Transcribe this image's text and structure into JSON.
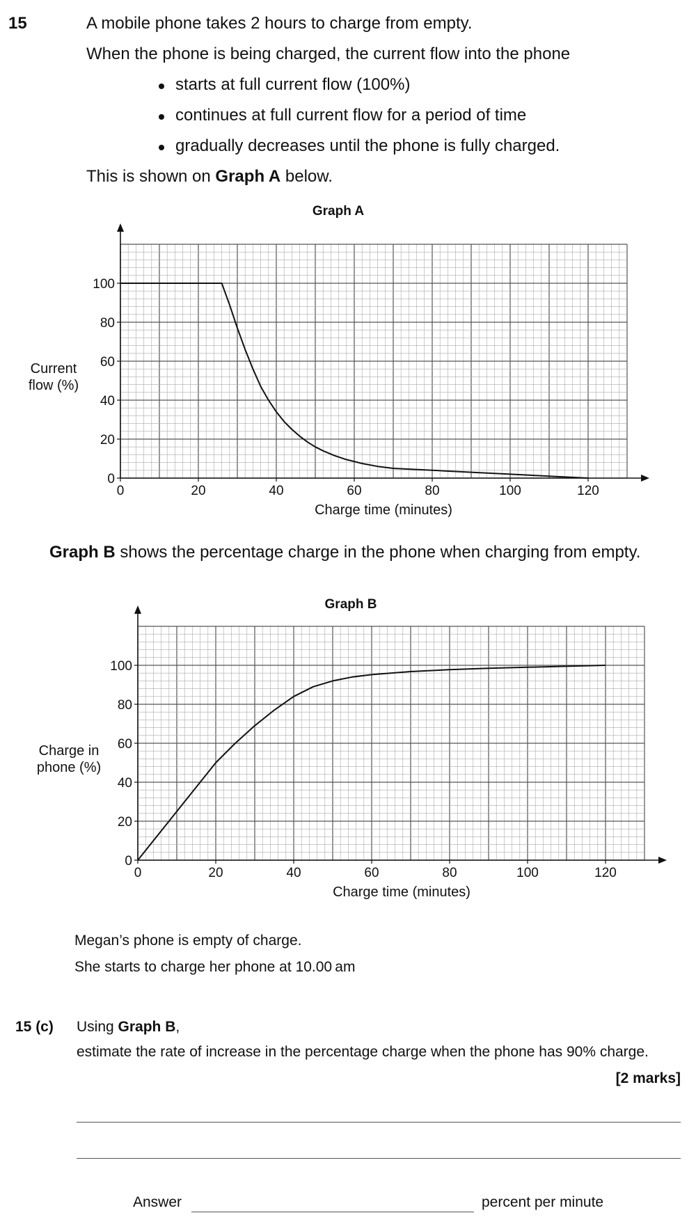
{
  "question": {
    "number": "15",
    "intro": "A mobile phone takes 2 hours to charge from empty.",
    "line2": "When the phone is being charged, the current flow into the phone",
    "bullets": [
      "starts at full current flow (100%)",
      "continues at full current flow for a period of time",
      "gradually decreases until the phone is fully charged."
    ],
    "shown_pre": "This is shown on ",
    "shown_bold": "Graph A",
    "shown_post": " below.",
    "graphb_bold": "Graph B",
    "graphb_rest": " shows the percentage charge in the phone when charging from empty.",
    "megan1": "Megan’s phone is empty of charge.",
    "megan2": "She starts to charge her phone at 10.00 am"
  },
  "part_c": {
    "label": "15  (c)",
    "using_pre": "Using ",
    "using_bold": "Graph B",
    "using_post": ",",
    "task": "estimate the rate of increase in the percentage charge when the phone has 90% charge.",
    "marks": "[2 marks]",
    "answer_label": "Answer",
    "answer_unit": "percent per minute"
  },
  "chart_data": [
    {
      "type": "line",
      "title": "Graph A",
      "xlabel": "Charge time (minutes)",
      "ylabel_lines": [
        "Current",
        "flow (%)"
      ],
      "xlim": [
        0,
        130
      ],
      "ylim": [
        0,
        120
      ],
      "x_ticks": [
        0,
        20,
        40,
        60,
        80,
        100,
        120
      ],
      "y_ticks": [
        0,
        20,
        40,
        60,
        80,
        100
      ],
      "x_tick_labels": [
        "0",
        "20",
        "40",
        "60",
        "80",
        "100",
        "120"
      ],
      "y_tick_labels": [
        "0",
        "20",
        "40",
        "60",
        "80",
        "100"
      ],
      "x": [
        0,
        26,
        28,
        30,
        32,
        34,
        36,
        38,
        40,
        42,
        44,
        46,
        48,
        50,
        52,
        55,
        58,
        62,
        66,
        70,
        80,
        90,
        100,
        110,
        120
      ],
      "y": [
        100,
        100,
        89,
        77,
        66,
        56,
        47,
        40,
        34,
        29,
        25,
        21.5,
        18.5,
        16,
        14,
        11.5,
        9.5,
        7.5,
        6,
        5,
        4,
        3,
        2,
        1,
        0
      ]
    },
    {
      "type": "line",
      "title": "Graph B",
      "xlabel": "Charge time (minutes)",
      "ylabel_lines": [
        "Charge in",
        "phone (%)"
      ],
      "xlim": [
        0,
        130
      ],
      "ylim": [
        0,
        120
      ],
      "x_ticks": [
        0,
        20,
        40,
        60,
        80,
        100,
        120
      ],
      "y_ticks": [
        0,
        20,
        40,
        60,
        80,
        100
      ],
      "x_tick_labels": [
        "0",
        "20",
        "40",
        "60",
        "80",
        "100",
        "120"
      ],
      "y_tick_labels": [
        "0",
        "20",
        "40",
        "60",
        "80",
        "100"
      ],
      "x": [
        0,
        5,
        10,
        15,
        20,
        25,
        30,
        35,
        40,
        45,
        50,
        55,
        60,
        70,
        80,
        90,
        100,
        110,
        120
      ],
      "y": [
        0,
        12.5,
        25,
        37.5,
        50,
        60,
        69,
        77,
        84,
        89,
        92,
        94,
        95.2,
        96.8,
        97.8,
        98.5,
        99,
        99.5,
        100
      ]
    }
  ]
}
